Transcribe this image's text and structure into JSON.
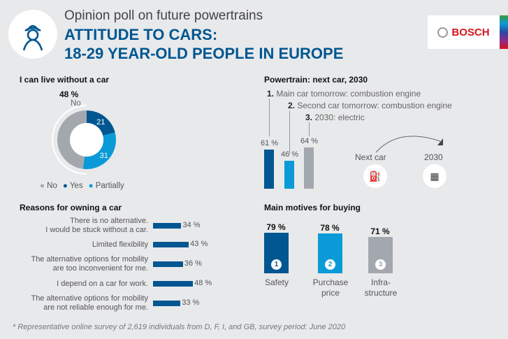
{
  "header": {
    "subtitle": "Opinion poll on future powertrains",
    "title_line1": "ATTITUDE TO CARS:",
    "title_line2": "18-29 YEAR-OLD PEOPLE IN EUROPE",
    "logo_text": "BOSCH",
    "icon": "person-icon"
  },
  "colors": {
    "dark_blue": "#005691",
    "light_blue": "#0a9ad8",
    "gray": "#a3a8ae",
    "brand_red": "#d4151c"
  },
  "chart_data": [
    {
      "type": "pie",
      "title": "I can live without a car",
      "categories": [
        "No",
        "Yes",
        "Partially"
      ],
      "values": [
        48,
        21,
        31
      ],
      "data_labels": [
        "48 %",
        "21",
        "31"
      ],
      "callout": {
        "value": "48 %",
        "label": "No"
      },
      "colors": [
        "#a3a8ae",
        "#005691",
        "#0a9ad8"
      ],
      "legend": [
        "No",
        "Yes",
        "Partially"
      ],
      "legend_placement": "bottom"
    },
    {
      "type": "bar",
      "title": "Powertrain: next car, 2030",
      "categories": [
        "1. Main car tomorrow: combustion engine",
        "2. Second car tomorrow: combustion engine",
        "3. 2030: electric"
      ],
      "numbers": [
        "1.",
        "2.",
        "3."
      ],
      "texts": [
        "Main car tomorrow: combustion engine",
        "Second car tomorrow: combustion engine",
        "2030: electric"
      ],
      "values": [
        61,
        46,
        64
      ],
      "data_labels": [
        "61 %",
        "46 %",
        "64 %"
      ],
      "colors": [
        "#005691",
        "#0a9ad8",
        "#a3a8ae"
      ],
      "annotation": {
        "from": "Next car",
        "to": "2030",
        "from_icon": "combustion-engine-icon",
        "to_icon": "battery-icon"
      }
    },
    {
      "type": "bar",
      "orientation": "horizontal",
      "title": "Reasons for owning a car",
      "categories": [
        "There is no alternative.\nI would be stuck without a car.",
        "Limited flexibility",
        "The alternative options for mobility\nare too inconvenient for me.",
        "I depend on a car for work.",
        "The alternative options for mobility\nare not reliable enough for me."
      ],
      "values": [
        34,
        43,
        36,
        48,
        33
      ],
      "data_labels": [
        "34 %",
        "43 %",
        "36 %",
        "48 %",
        "33 %"
      ]
    },
    {
      "type": "bar",
      "title": "Main motives for buying",
      "categories": [
        "Safety",
        "Purchase\nprice",
        "Infra-\nstructure"
      ],
      "ranks": [
        "1",
        "2",
        "3"
      ],
      "values": [
        79,
        78,
        71
      ],
      "data_labels": [
        "79 %",
        "78 %",
        "71 %"
      ],
      "colors": [
        "#005691",
        "#0a9ad8",
        "#a3a8ae"
      ]
    }
  ],
  "footnote": "* Representative online survey of 2,619 individuals from D, F, I, and GB, survey period: June 2020"
}
